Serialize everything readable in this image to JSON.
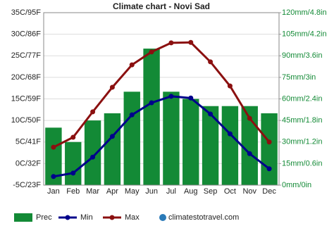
{
  "chart_data": {
    "type": "combo",
    "title": "Climate chart - Novi Sad",
    "categories": [
      "Jan",
      "Feb",
      "Mar",
      "Apr",
      "May",
      "Jun",
      "Jul",
      "Aug",
      "Sep",
      "Oct",
      "Nov",
      "Dec"
    ],
    "series": [
      {
        "name": "Prec",
        "type": "bar",
        "axis": "y2",
        "color": "#138a36",
        "values": [
          40,
          30,
          45,
          50,
          65,
          95,
          65,
          60,
          55,
          55,
          55,
          50
        ]
      },
      {
        "name": "Min",
        "type": "line",
        "color": "#00008b",
        "values": [
          -3.0,
          -2.2,
          1.5,
          6.3,
          11.3,
          14.1,
          15.6,
          15.2,
          11.5,
          6.9,
          2.3,
          -1.2
        ]
      },
      {
        "name": "Max",
        "type": "line",
        "color": "#8b1010",
        "values": [
          3.8,
          6.1,
          12.0,
          17.7,
          22.9,
          25.9,
          28.0,
          28.1,
          23.6,
          18.0,
          10.5,
          5.0
        ]
      }
    ],
    "ylim": [
      -5,
      35
    ],
    "yticks": [
      {
        "value": -5,
        "label": "-5C/23F"
      },
      {
        "value": 0,
        "label": "0C/32F"
      },
      {
        "value": 5,
        "label": "5C/41F"
      },
      {
        "value": 10,
        "label": "10C/50F"
      },
      {
        "value": 15,
        "label": "15C/59F"
      },
      {
        "value": 20,
        "label": "20C/68F"
      },
      {
        "value": 25,
        "label": "25C/77F"
      },
      {
        "value": 30,
        "label": "30C/86F"
      },
      {
        "value": 35,
        "label": "35C/95F"
      }
    ],
    "y2lim": [
      0,
      120
    ],
    "y2ticks": [
      {
        "value": 0,
        "label": "0mm/0in"
      },
      {
        "value": 15,
        "label": "15mm/0.6in"
      },
      {
        "value": 30,
        "label": "30mm/1.2in"
      },
      {
        "value": 45,
        "label": "45mm/1.8in"
      },
      {
        "value": 60,
        "label": "60mm/2.4in"
      },
      {
        "value": 75,
        "label": "75mm/3in"
      },
      {
        "value": 90,
        "label": "90mm/3.6in"
      },
      {
        "value": 105,
        "label": "105mm/4.2in"
      },
      {
        "value": 120,
        "label": "120mm/4.8in"
      }
    ],
    "grid": true,
    "legend": "bottom",
    "watermark": "climatestotravel.com"
  }
}
